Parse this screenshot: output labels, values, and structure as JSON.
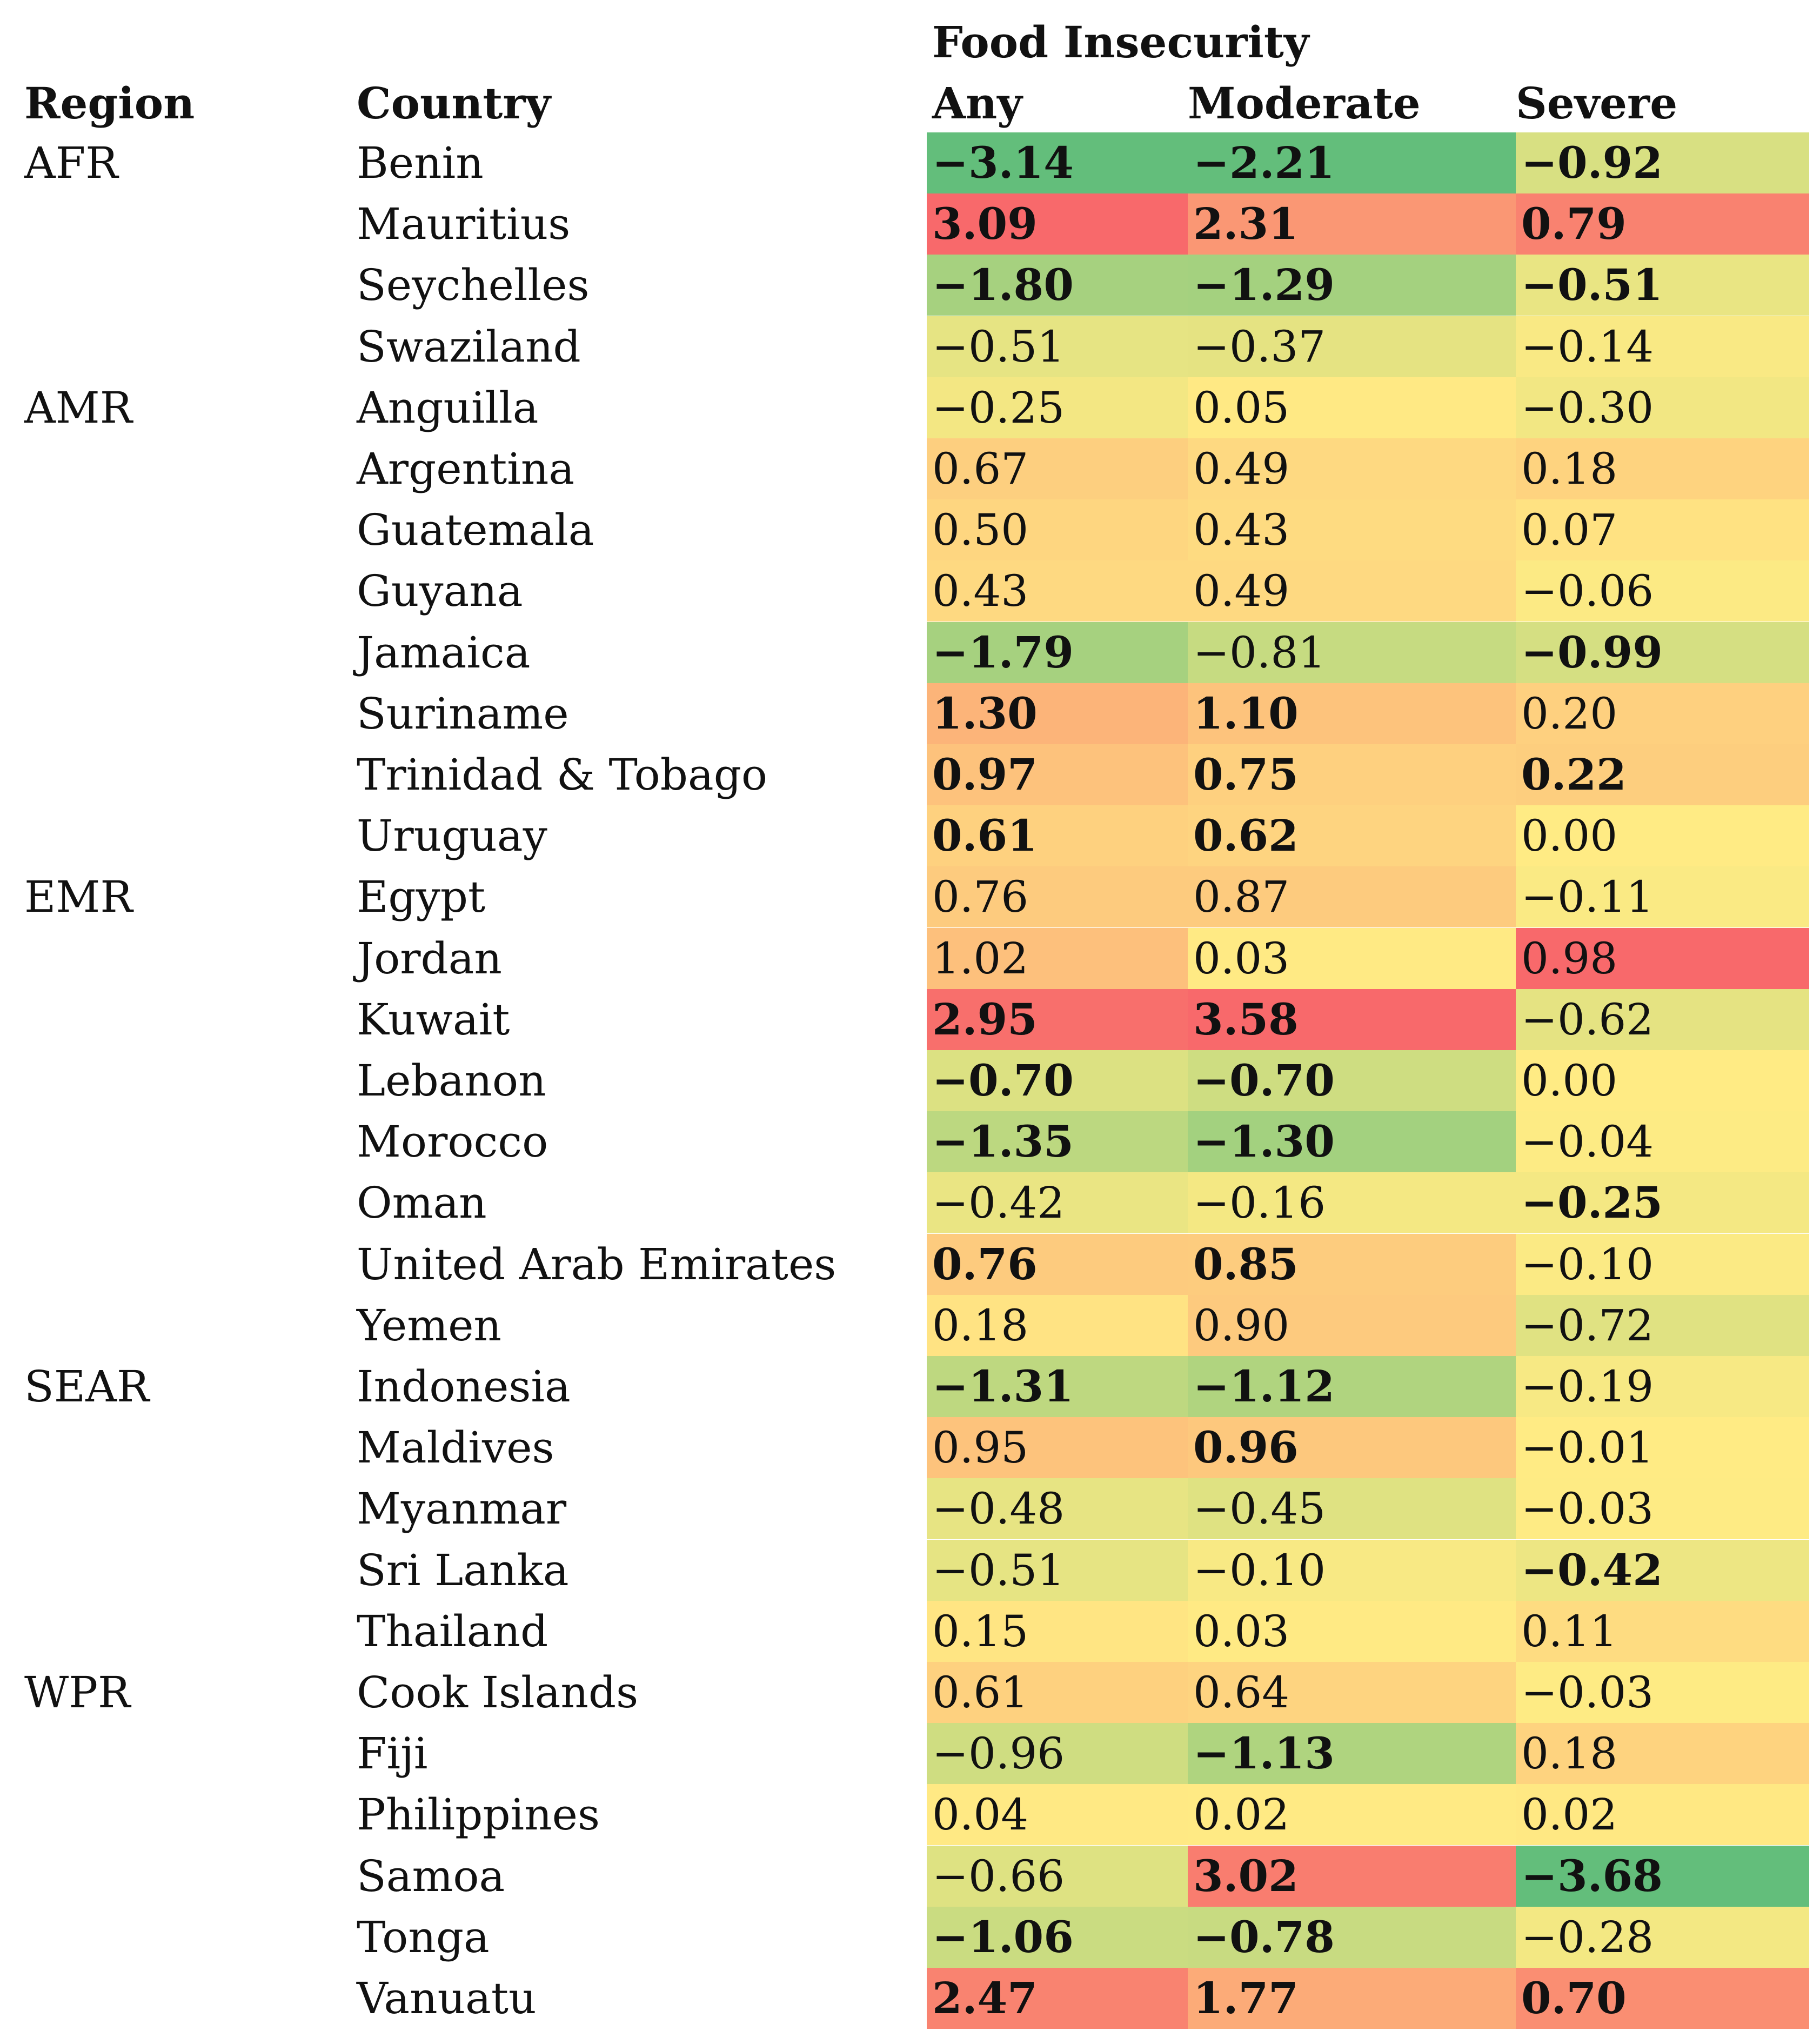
{
  "header": {
    "group_label": "Food Insecurity",
    "region_label": "Region",
    "country_label": "Country",
    "any_label": "Any",
    "moderate_label": "Moderate",
    "severe_label": "Severe"
  },
  "color_scale": {
    "green": "#63be7b",
    "yellow": "#ffeb84",
    "red": "#f8696b"
  },
  "rows": [
    {
      "region": "AFR",
      "country": "Benin",
      "any": "−3.14",
      "any_bold": true,
      "moderate": "−2.21",
      "moderate_bold": true,
      "severe": "−0.92",
      "severe_bold": true
    },
    {
      "region": "",
      "country": "Mauritius",
      "any": "3.09",
      "any_bold": true,
      "moderate": "2.31",
      "moderate_bold": true,
      "severe": "0.79",
      "severe_bold": true
    },
    {
      "region": "",
      "country": "Seychelles",
      "any": "−1.80",
      "any_bold": true,
      "moderate": "−1.29",
      "moderate_bold": true,
      "severe": "−0.51",
      "severe_bold": true
    },
    {
      "region": "",
      "country": "Swaziland",
      "any": "−0.51",
      "any_bold": false,
      "moderate": "−0.37",
      "moderate_bold": false,
      "severe": "−0.14",
      "severe_bold": false
    },
    {
      "region": "AMR",
      "country": "Anguilla",
      "any": "−0.25",
      "any_bold": false,
      "moderate": "0.05",
      "moderate_bold": false,
      "severe": "−0.30",
      "severe_bold": false
    },
    {
      "region": "",
      "country": "Argentina",
      "any": "0.67",
      "any_bold": false,
      "moderate": "0.49",
      "moderate_bold": false,
      "severe": "0.18",
      "severe_bold": false
    },
    {
      "region": "",
      "country": "Guatemala",
      "any": "0.50",
      "any_bold": false,
      "moderate": "0.43",
      "moderate_bold": false,
      "severe": "0.07",
      "severe_bold": false
    },
    {
      "region": "",
      "country": "Guyana",
      "any": "0.43",
      "any_bold": false,
      "moderate": "0.49",
      "moderate_bold": false,
      "severe": "−0.06",
      "severe_bold": false
    },
    {
      "region": "",
      "country": "Jamaica",
      "any": "−1.79",
      "any_bold": true,
      "moderate": "−0.81",
      "moderate_bold": false,
      "severe": "−0.99",
      "severe_bold": true
    },
    {
      "region": "",
      "country": "Suriname",
      "any": "1.30",
      "any_bold": true,
      "moderate": "1.10",
      "moderate_bold": true,
      "severe": "0.20",
      "severe_bold": false
    },
    {
      "region": "",
      "country": "Trinidad & Tobago",
      "any": "0.97",
      "any_bold": true,
      "moderate": "0.75",
      "moderate_bold": true,
      "severe": "0.22",
      "severe_bold": true
    },
    {
      "region": "",
      "country": "Uruguay",
      "any": "0.61",
      "any_bold": true,
      "moderate": "0.62",
      "moderate_bold": true,
      "severe": "0.00",
      "severe_bold": false
    },
    {
      "region": "EMR",
      "country": "Egypt",
      "any": "0.76",
      "any_bold": false,
      "moderate": "0.87",
      "moderate_bold": false,
      "severe": "−0.11",
      "severe_bold": false
    },
    {
      "region": "",
      "country": "Jordan",
      "any": "1.02",
      "any_bold": false,
      "moderate": "0.03",
      "moderate_bold": false,
      "severe": "0.98",
      "severe_bold": false
    },
    {
      "region": "",
      "country": "Kuwait",
      "any": "2.95",
      "any_bold": true,
      "moderate": "3.58",
      "moderate_bold": true,
      "severe": "−0.62",
      "severe_bold": false
    },
    {
      "region": "",
      "country": "Lebanon",
      "any": "−0.70",
      "any_bold": true,
      "moderate": "−0.70",
      "moderate_bold": true,
      "severe": "0.00",
      "severe_bold": false
    },
    {
      "region": "",
      "country": "Morocco",
      "any": "−1.35",
      "any_bold": true,
      "moderate": "−1.30",
      "moderate_bold": true,
      "severe": "−0.04",
      "severe_bold": false
    },
    {
      "region": "",
      "country": "Oman",
      "any": "−0.42",
      "any_bold": false,
      "moderate": "−0.16",
      "moderate_bold": false,
      "severe": "−0.25",
      "severe_bold": true
    },
    {
      "region": "",
      "country": "United Arab Emirates",
      "any": "0.76",
      "any_bold": true,
      "moderate": "0.85",
      "moderate_bold": true,
      "severe": "−0.10",
      "severe_bold": false
    },
    {
      "region": "",
      "country": "Yemen",
      "any": "0.18",
      "any_bold": false,
      "moderate": "0.90",
      "moderate_bold": false,
      "severe": "−0.72",
      "severe_bold": false
    },
    {
      "region": "SEAR",
      "country": "Indonesia",
      "any": "−1.31",
      "any_bold": true,
      "moderate": "−1.12",
      "moderate_bold": true,
      "severe": "−0.19",
      "severe_bold": false
    },
    {
      "region": "",
      "country": "Maldives",
      "any": "0.95",
      "any_bold": false,
      "moderate": "0.96",
      "moderate_bold": true,
      "severe": "−0.01",
      "severe_bold": false
    },
    {
      "region": "",
      "country": "Myanmar",
      "any": "−0.48",
      "any_bold": false,
      "moderate": "−0.45",
      "moderate_bold": false,
      "severe": "−0.03",
      "severe_bold": false
    },
    {
      "region": "",
      "country": "Sri Lanka",
      "any": "−0.51",
      "any_bold": false,
      "moderate": "−0.10",
      "moderate_bold": false,
      "severe": "−0.42",
      "severe_bold": true
    },
    {
      "region": "",
      "country": "Thailand",
      "any": "0.15",
      "any_bold": false,
      "moderate": "0.03",
      "moderate_bold": false,
      "severe": "0.11",
      "severe_bold": false
    },
    {
      "region": "WPR",
      "country": "Cook Islands",
      "any": "0.61",
      "any_bold": false,
      "moderate": "0.64",
      "moderate_bold": false,
      "severe": "−0.03",
      "severe_bold": false
    },
    {
      "region": "",
      "country": "Fiji",
      "any": "−0.96",
      "any_bold": false,
      "moderate": "−1.13",
      "moderate_bold": true,
      "severe": "0.18",
      "severe_bold": false
    },
    {
      "region": "",
      "country": "Philippines",
      "any": "0.04",
      "any_bold": false,
      "moderate": "0.02",
      "moderate_bold": false,
      "severe": "0.02",
      "severe_bold": false
    },
    {
      "region": "",
      "country": "Samoa",
      "any": "−0.66",
      "any_bold": false,
      "moderate": "3.02",
      "moderate_bold": true,
      "severe": "−3.68",
      "severe_bold": true
    },
    {
      "region": "",
      "country": "Tonga",
      "any": "−1.06",
      "any_bold": true,
      "moderate": "−0.78",
      "moderate_bold": true,
      "severe": "−0.28",
      "severe_bold": false
    },
    {
      "region": "",
      "country": "Vanuatu",
      "any": "2.47",
      "any_bold": true,
      "moderate": "1.77",
      "moderate_bold": true,
      "severe": "0.70",
      "severe_bold": true
    }
  ]
}
